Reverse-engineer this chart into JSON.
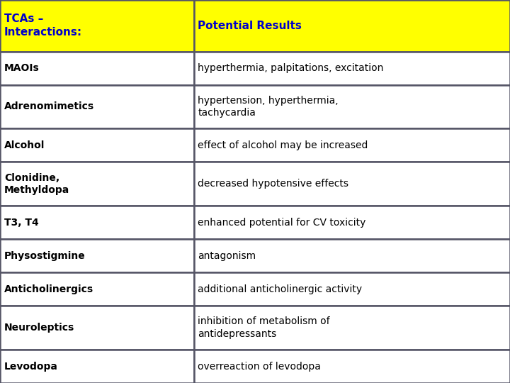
{
  "header_col1": "TCAs –\nInteractions:",
  "header_col2": "Potential Results",
  "header_bg": "#FFFF00",
  "header_text_color": "#0000CC",
  "cell_bg": "#FFFFFF",
  "cell_text_color": "#000000",
  "border_color": "#555566",
  "rows": [
    [
      "MAOIs",
      "hyperthermia, palpitations, excitation"
    ],
    [
      "Adrenomimetics",
      "hypertension, hyperthermia,\ntachycardia"
    ],
    [
      "Alcohol",
      "effect of alcohol may be increased"
    ],
    [
      "Clonidine,\nMethyldopa",
      "decreased hypotensive effects"
    ],
    [
      "T3, T4",
      "enhanced potential for CV toxicity"
    ],
    [
      "Physostigmine",
      "antagonism"
    ],
    [
      "Anticholinergics",
      "additional anticholinergic activity"
    ],
    [
      "Neuroleptics",
      "inhibition of metabolism of\nantidepressants"
    ],
    [
      "Levodopa",
      "overreaction of levodopa"
    ]
  ],
  "col_split": 0.38,
  "header_fontsize": 11,
  "cell_fontsize": 10,
  "fig_width": 7.2,
  "fig_height": 5.4,
  "dpi": 100
}
